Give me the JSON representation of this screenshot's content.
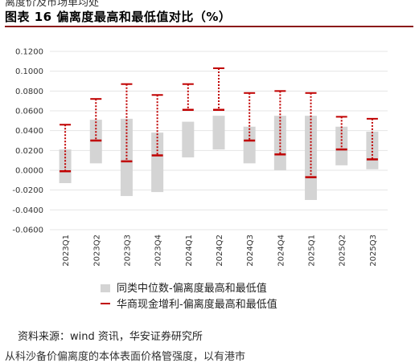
{
  "header": {
    "title": "图表 16 偏离度最高和最低值对比（%）",
    "clipped_top_text": "离度价及市场单均处",
    "clipped_bottom_text": "从科沙备价偏离度的本体表面价格管强度，以有港市"
  },
  "footer": {
    "source": "资料来源：wind 资讯，华安证券研究所"
  },
  "colors": {
    "bar": "#d4d4d4",
    "line": "#c00000",
    "title_rule": "#8b1a1a"
  },
  "chart_data": {
    "type": "bar",
    "categories": [
      "2023Q1",
      "2023Q2",
      "2023Q3",
      "2023Q4",
      "2024Q1",
      "2024Q2",
      "2024Q3",
      "2024Q4",
      "2025Q1",
      "2025Q2",
      "2025Q3"
    ],
    "ylim": [
      -0.06,
      0.12
    ],
    "yticks": [
      "0.1200",
      "0.1000",
      "0.0800",
      "0.0600",
      "0.0400",
      "0.0200",
      "0.0000",
      "-0.0200",
      "-0.0400",
      "-0.0600"
    ],
    "grid": true,
    "series": [
      {
        "name": "同类中位数-偏离度最高和最低值",
        "low": [
          -0.013,
          0.007,
          -0.026,
          -0.022,
          0.013,
          0.021,
          0.007,
          0.0,
          -0.03,
          0.005,
          0.001
        ],
        "high": [
          0.021,
          0.051,
          0.052,
          0.038,
          0.049,
          0.055,
          0.044,
          0.055,
          0.055,
          0.044,
          0.039
        ]
      },
      {
        "name": "华商现金增利-偏离度最高和最低值",
        "low": [
          -0.001,
          0.03,
          0.009,
          0.015,
          0.061,
          0.061,
          0.03,
          0.016,
          -0.007,
          0.021,
          0.011
        ],
        "high": [
          0.046,
          0.072,
          0.087,
          0.076,
          0.087,
          0.103,
          0.078,
          0.08,
          0.078,
          0.054,
          0.052
        ]
      }
    ],
    "legend": "bottom"
  }
}
